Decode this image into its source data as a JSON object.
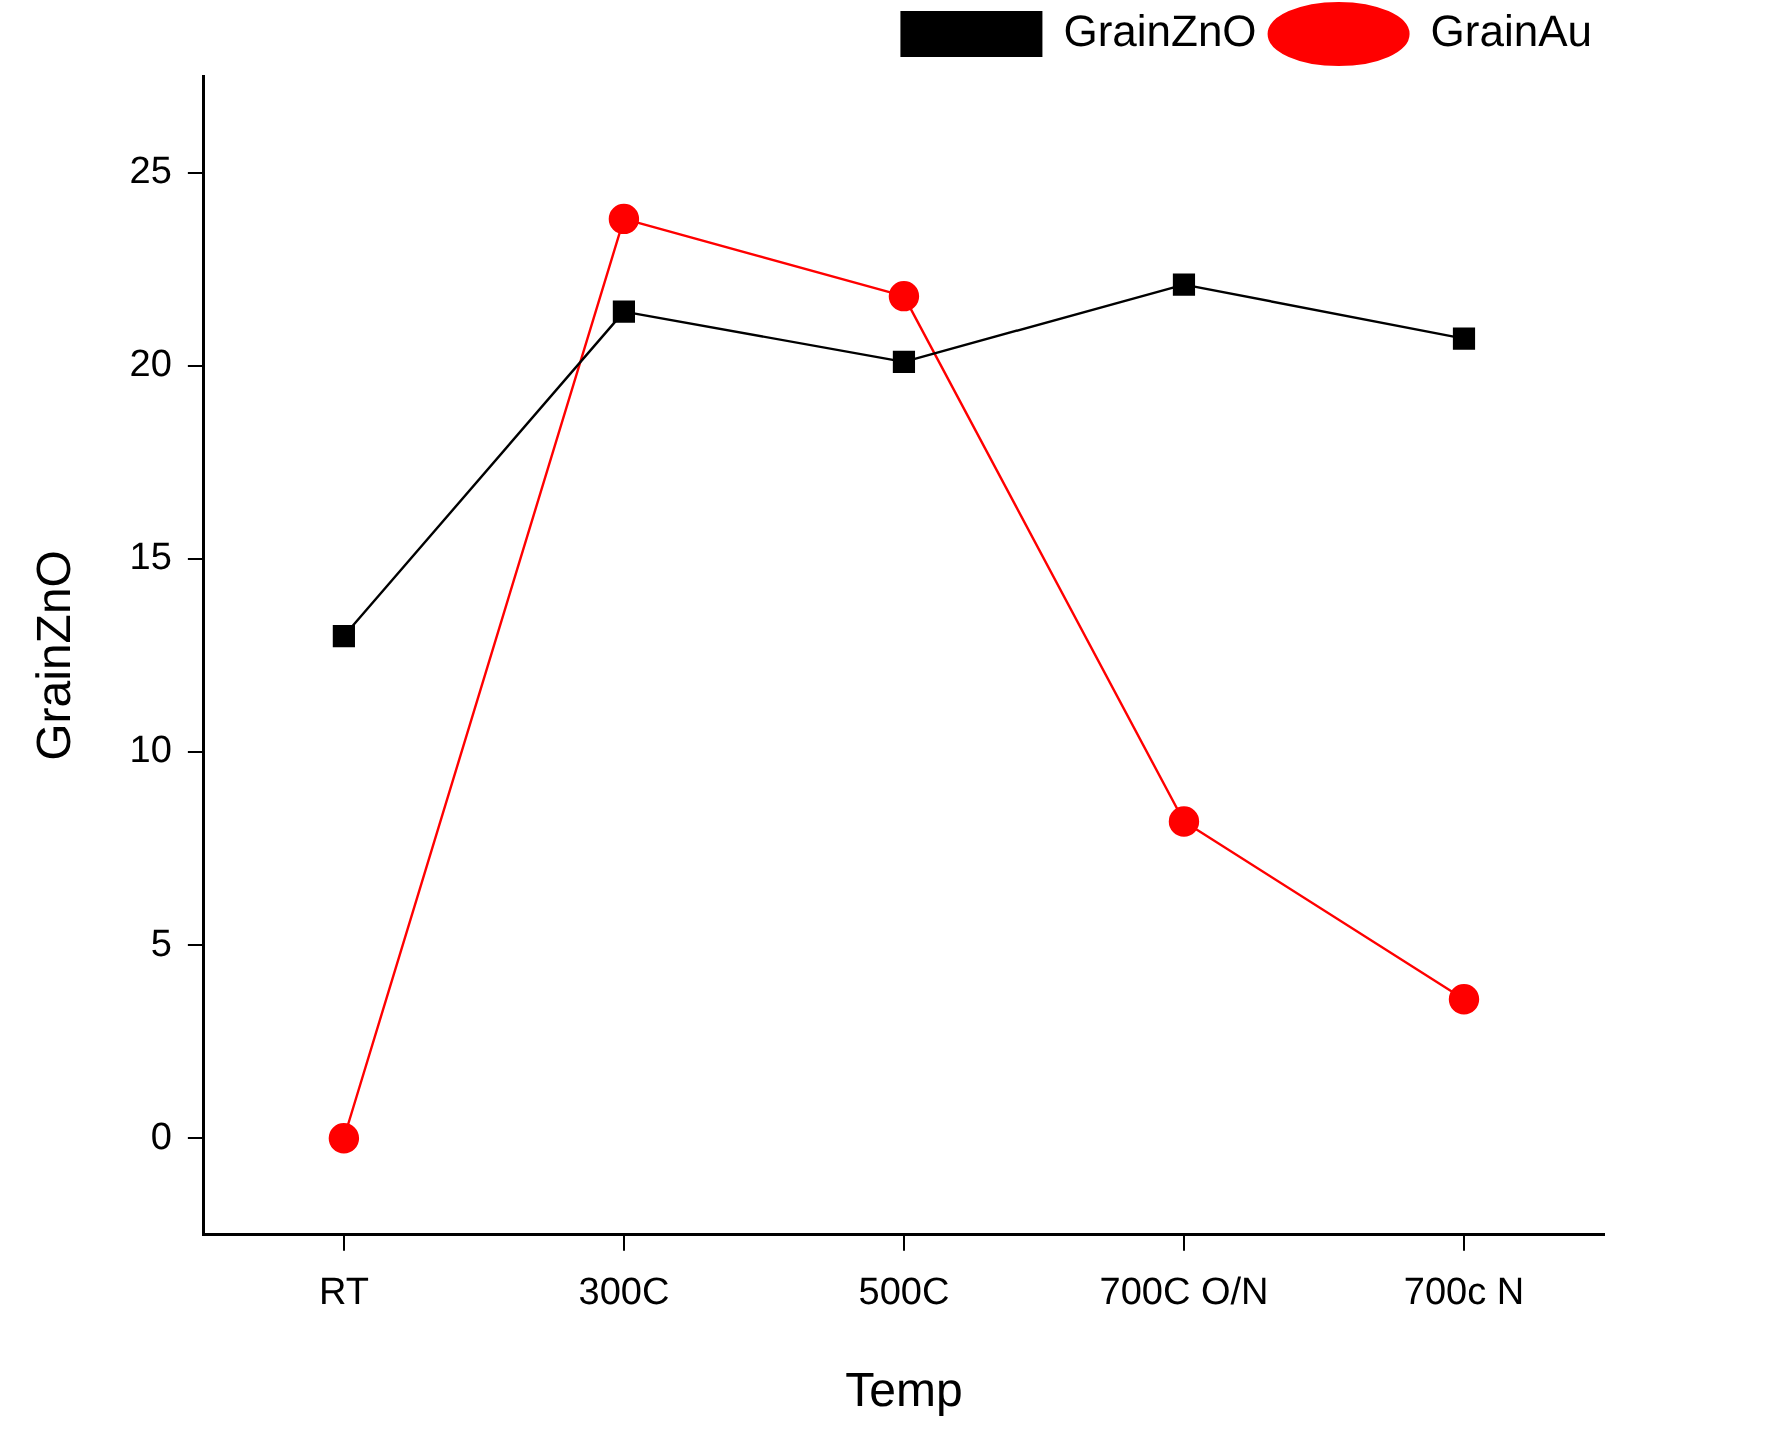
{
  "chart_data": {
    "type": "line",
    "xlabel": "Temp",
    "ylabel": "GrainZnO",
    "categories": [
      "RT",
      "300C",
      "500C",
      "700C O/N",
      "700c N"
    ],
    "series": [
      {
        "name": "GrainZnO",
        "color": "#000000",
        "marker": "square",
        "values": [
          13,
          21.4,
          20.1,
          22.1,
          20.7
        ]
      },
      {
        "name": "GrainAu",
        "color": "#ff0000",
        "marker": "circle",
        "values": [
          0,
          23.8,
          21.8,
          8.2,
          3.6
        ]
      }
    ],
    "ylim": [
      -2.5,
      27.5
    ],
    "yticks": [
      0,
      5,
      10,
      15,
      20,
      25
    ],
    "grid": false,
    "legend": "top right",
    "line_style": "solid"
  }
}
